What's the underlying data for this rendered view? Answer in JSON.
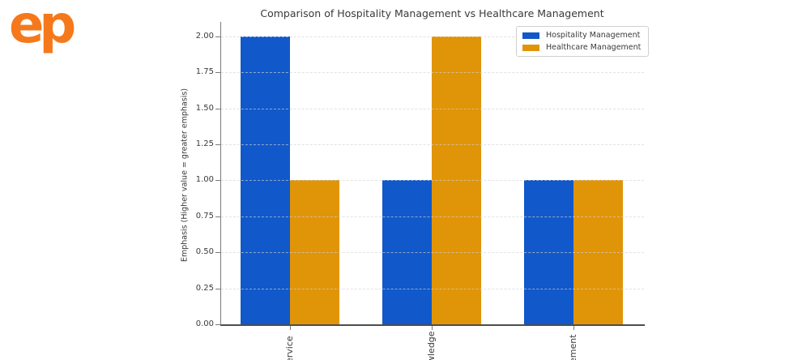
{
  "logo": {
    "text": "ep",
    "color": "#F5791B"
  },
  "chart_data": {
    "type": "bar",
    "title": "Comparison of Hospitality Management vs Healthcare Management",
    "xlabel": "",
    "ylabel": "Emphasis (Higher value = greater emphasis)",
    "categories": [
      "ervice",
      "wledge",
      "ement"
    ],
    "series": [
      {
        "name": "Hospitality Management",
        "color": "#1158CA",
        "values": [
          2.0,
          1.0,
          1.0
        ]
      },
      {
        "name": "Healthcare Management",
        "color": "#E09408",
        "values": [
          1.0,
          2.0,
          1.0
        ]
      }
    ],
    "ylim": [
      0,
      2.1
    ],
    "yticks": [
      "0.00",
      "0.25",
      "0.50",
      "0.75",
      "1.00",
      "1.25",
      "1.50",
      "1.75",
      "2.00"
    ],
    "grid": "horizontal-dashed",
    "legend_position": "upper-right",
    "xtick_rotation": 90
  }
}
